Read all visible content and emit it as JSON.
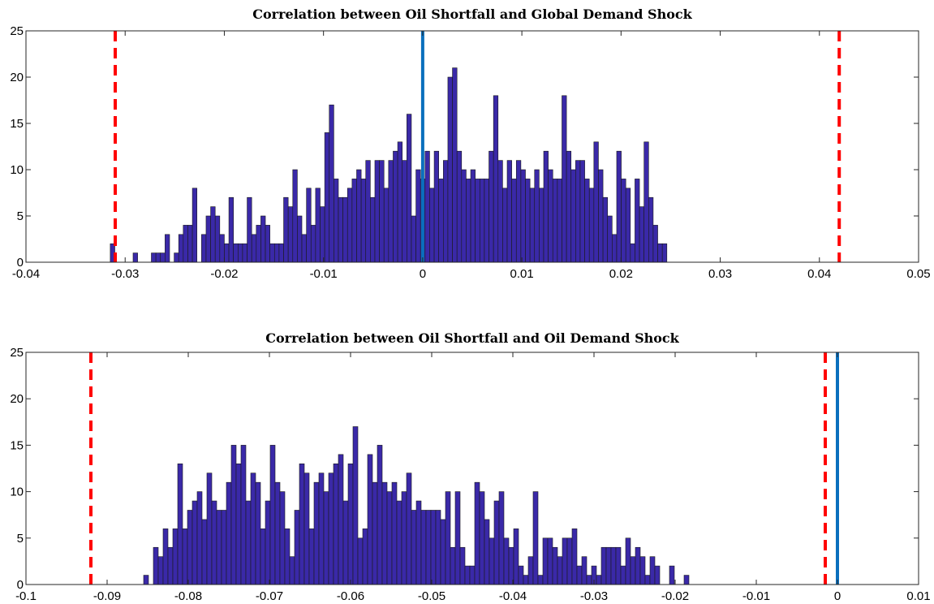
{
  "chart_data": [
    {
      "type": "bar",
      "title": "Correlation between Oil Shortfall and Global Demand Shock",
      "xlim": [
        -0.04,
        0.05
      ],
      "ylim": [
        0,
        25
      ],
      "xticks": [
        "-0.04",
        "-0.03",
        "-0.02",
        "-0.01",
        "0",
        "0.01",
        "0.02",
        "0.03",
        "0.04",
        "0.05"
      ],
      "yticks": [
        "0",
        "5",
        "10",
        "15",
        "20",
        "25"
      ],
      "hist_start": -0.0315,
      "bin_width": 0.00046,
      "values": [
        2,
        0,
        0,
        0,
        0,
        1,
        0,
        0,
        0,
        1,
        1,
        1,
        3,
        0,
        1,
        3,
        4,
        4,
        8,
        0,
        3,
        5,
        6,
        5,
        3,
        2,
        7,
        2,
        2,
        2,
        7,
        3,
        4,
        5,
        4,
        2,
        2,
        2,
        7,
        6,
        10,
        5,
        3,
        8,
        4,
        8,
        6,
        14,
        17,
        9,
        7,
        7,
        8,
        9,
        10,
        9,
        11,
        7,
        11,
        11,
        8,
        11,
        12,
        13,
        11,
        16,
        5,
        10,
        9,
        12,
        8,
        12,
        9,
        11,
        20,
        21,
        12,
        10,
        9,
        10,
        9,
        9,
        9,
        12,
        18,
        11,
        8,
        11,
        9,
        11,
        10,
        9,
        8,
        10,
        8,
        12,
        10,
        9,
        9,
        18,
        12,
        10,
        11,
        11,
        9,
        8,
        13,
        10,
        7,
        5,
        3,
        12,
        9,
        8,
        2,
        9,
        6,
        13,
        7,
        4,
        2,
        2
      ],
      "bar_color": "#3a29a8",
      "reference_lines": [
        {
          "x": 0,
          "color": "#0a6fbd",
          "style": "solid"
        },
        {
          "x": -0.031,
          "color": "#ff0000",
          "style": "dashed"
        },
        {
          "x": 0.042,
          "color": "#ff0000",
          "style": "dashed"
        }
      ]
    },
    {
      "type": "bar",
      "title": "Correlation between Oil Shortfall and Oil Demand Shock",
      "xlim": [
        -0.1,
        0.01
      ],
      "ylim": [
        0,
        25
      ],
      "xticks": [
        "-0.1",
        "-0.09",
        "-0.08",
        "-0.07",
        "-0.06",
        "-0.05",
        "-0.04",
        "-0.03",
        "-0.02",
        "-0.01",
        "0",
        "0.01"
      ],
      "yticks": [
        "0",
        "5",
        "10",
        "15",
        "20",
        "25"
      ],
      "hist_start": -0.0855,
      "bin_width": 0.0006,
      "values": [
        1,
        0,
        4,
        3,
        6,
        4,
        6,
        13,
        6,
        8,
        9,
        10,
        7,
        12,
        9,
        8,
        8,
        11,
        15,
        13,
        15,
        9,
        12,
        11,
        6,
        9,
        15,
        11,
        10,
        6,
        3,
        8,
        13,
        12,
        6,
        11,
        12,
        10,
        12,
        13,
        14,
        9,
        13,
        17,
        5,
        6,
        14,
        11,
        15,
        11,
        10,
        11,
        9,
        10,
        12,
        8,
        9,
        8,
        8,
        8,
        8,
        7,
        10,
        4,
        10,
        4,
        2,
        2,
        11,
        10,
        7,
        5,
        9,
        10,
        5,
        4,
        6,
        2,
        1,
        3,
        10,
        1,
        5,
        5,
        4,
        3,
        5,
        5,
        6,
        2,
        3,
        1,
        2,
        1,
        4,
        4,
        4,
        4,
        2,
        5,
        3,
        4,
        3,
        1,
        3,
        2,
        0,
        0,
        2,
        0,
        0,
        1
      ],
      "bar_color": "#3a29a8",
      "reference_lines": [
        {
          "x": 0,
          "color": "#0a6fbd",
          "style": "solid"
        },
        {
          "x": -0.092,
          "color": "#ff0000",
          "style": "dashed"
        },
        {
          "x": -0.0015,
          "color": "#ff0000",
          "style": "dashed"
        }
      ]
    }
  ]
}
